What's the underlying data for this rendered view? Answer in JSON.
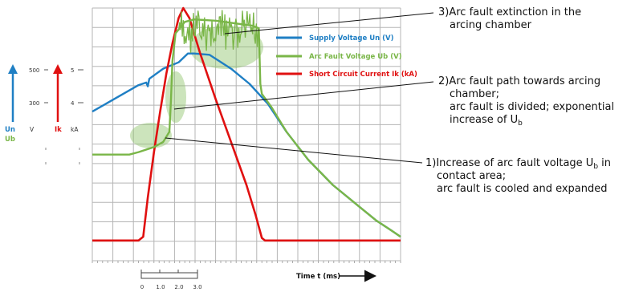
{
  "colors": {
    "supply_voltage": "#1f7fc4",
    "arc_fault_voltage": "#7ab648",
    "short_circuit_current": "#e01010",
    "highlight": "#8fc46a",
    "grid": "#b5b5b5"
  },
  "annotations": {
    "a3": {
      "line1": "3)Arc fault extinction in the",
      "line2": "arcing chamber"
    },
    "a2": {
      "line1": "2)Arc fault path towards arcing",
      "line2": "chamber;",
      "line3": "arc fault is divided; exponential",
      "line4": "increase of U",
      "line4_sub": "b"
    },
    "a1": {
      "line1": "1)Increase of arc fault voltage U",
      "line1_sub": "b",
      "line1_tail": " in",
      "line2": "contact area;",
      "line3": "arc fault is cooled and expanded"
    }
  },
  "chart_data": {
    "type": "line",
    "title": "",
    "xlabel": "Time t (ms)",
    "ylabel": "",
    "grid": true,
    "legend_position": "top-right",
    "x_range": [
      0,
      10
    ],
    "y_range": [
      0,
      10
    ],
    "time_scale": {
      "labels": [
        "0",
        "1.0",
        "2.0",
        "3.0"
      ]
    },
    "left_axes": {
      "voltage_ticks": [
        "500",
        "300"
      ],
      "current_ticks": [
        "5",
        "4"
      ],
      "un_label": "Un",
      "ub_label": "Ub",
      "voltage_unit": "V",
      "ik_label": "Ik",
      "current_unit": "kA"
    },
    "series": [
      {
        "name": "Supply Voltage Un (V)",
        "color": "#1f7fc4",
        "points": [
          [
            0.0,
            5.9
          ],
          [
            0.5,
            6.25
          ],
          [
            1.0,
            6.6
          ],
          [
            1.5,
            6.95
          ],
          [
            1.75,
            7.05
          ],
          [
            1.8,
            6.9
          ],
          [
            1.85,
            7.2
          ],
          [
            2.3,
            7.6
          ],
          [
            2.8,
            7.85
          ],
          [
            3.1,
            8.2
          ],
          [
            3.3,
            8.2
          ],
          [
            3.8,
            8.15
          ],
          [
            4.5,
            7.6
          ],
          [
            5.1,
            7.0
          ],
          [
            5.4,
            6.6
          ],
          [
            5.7,
            6.2
          ],
          [
            6.3,
            5.1
          ],
          [
            7.0,
            4.0
          ],
          [
            7.8,
            3.0
          ],
          [
            8.5,
            2.3
          ],
          [
            9.2,
            1.6
          ],
          [
            9.7,
            1.2
          ],
          [
            10.0,
            0.95
          ]
        ]
      },
      {
        "name": "Arc Fault Voltage Ub (V)",
        "color": "#7ab648",
        "points": [
          [
            0.0,
            4.2
          ],
          [
            1.2,
            4.2
          ],
          [
            1.5,
            4.3
          ],
          [
            2.0,
            4.5
          ],
          [
            2.3,
            4.7
          ],
          [
            2.5,
            5.1
          ],
          [
            2.55,
            6.3
          ],
          [
            2.6,
            7.9
          ],
          [
            2.7,
            9.0
          ],
          [
            2.9,
            9.3
          ],
          [
            3.0,
            9.45
          ],
          [
            3.3,
            9.55
          ],
          [
            4.0,
            9.5
          ],
          [
            4.6,
            9.4
          ],
          [
            5.2,
            9.3
          ],
          [
            5.4,
            9.2
          ],
          [
            5.45,
            7.0
          ],
          [
            5.5,
            6.6
          ],
          [
            5.8,
            6.1
          ],
          [
            6.3,
            5.1
          ],
          [
            7.0,
            4.0
          ],
          [
            7.8,
            3.0
          ],
          [
            8.5,
            2.3
          ],
          [
            9.2,
            1.6
          ],
          [
            9.7,
            1.2
          ],
          [
            10.0,
            0.95
          ]
        ]
      },
      {
        "name": "Short Circuit Current Ik (kA)",
        "color": "#e01010",
        "points": [
          [
            0.0,
            0.8
          ],
          [
            1.5,
            0.8
          ],
          [
            1.65,
            0.95
          ],
          [
            1.8,
            2.5
          ],
          [
            2.0,
            4.3
          ],
          [
            2.2,
            5.9
          ],
          [
            2.4,
            7.4
          ],
          [
            2.6,
            8.6
          ],
          [
            2.8,
            9.6
          ],
          [
            2.95,
            10.0
          ],
          [
            3.15,
            9.6
          ],
          [
            3.5,
            8.2
          ],
          [
            4.0,
            6.4
          ],
          [
            4.5,
            4.7
          ],
          [
            5.0,
            3.0
          ],
          [
            5.3,
            1.8
          ],
          [
            5.5,
            0.9
          ],
          [
            5.6,
            0.8
          ],
          [
            10.0,
            0.8
          ]
        ]
      }
    ]
  }
}
